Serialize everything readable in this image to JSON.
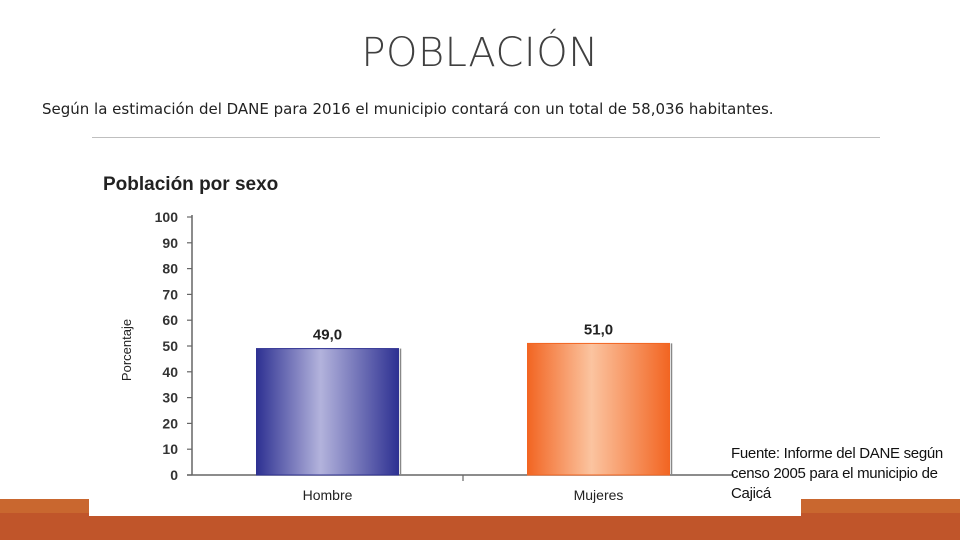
{
  "slide": {
    "title": "POBLACIÓN",
    "subtitle": "Según la estimación del DANE para 2016 el municipio contará con un total de 58,036 habitantes.",
    "source_note": "Fuente: Informe del DANE según censo 2005 para el municipio de Cajicá"
  },
  "colors": {
    "accent_bar": "#c0552a",
    "hombre_dark": "#2e3192",
    "hombre_light": "#b3b3dc",
    "mujeres_dark": "#f26522",
    "mujeres_light": "#fbc4a0"
  },
  "chart_data": {
    "type": "bar",
    "title": "Población por sexo",
    "xlabel": "",
    "ylabel": "Porcentaje",
    "categories": [
      "Hombre",
      "Mujeres"
    ],
    "values": [
      49.0,
      51.0
    ],
    "data_labels": [
      "49,0",
      "51,0"
    ],
    "ylim": [
      0,
      100
    ],
    "yticks": [
      0,
      10,
      20,
      30,
      40,
      50,
      60,
      70,
      80,
      90,
      100
    ],
    "grid": false,
    "legend": "none"
  }
}
